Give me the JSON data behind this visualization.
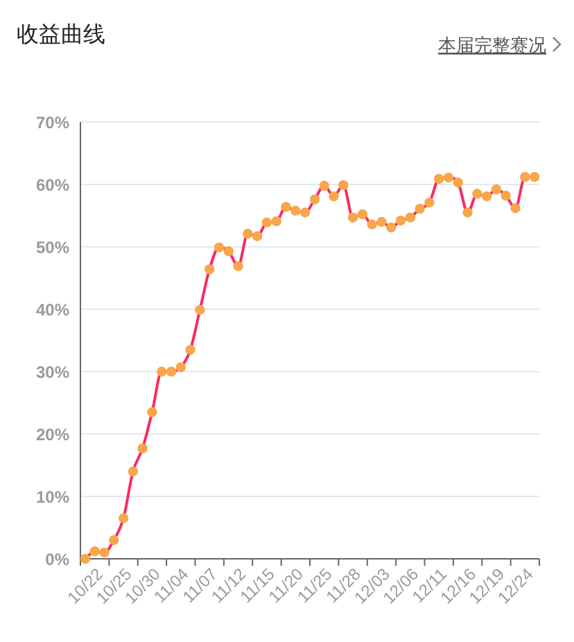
{
  "chart_data": {
    "type": "line",
    "title": "收益曲线",
    "annotations": [
      "本届完整赛况"
    ],
    "categories": [
      "10/22",
      null,
      null,
      "10/25",
      null,
      null,
      "10/30",
      null,
      null,
      "11/04",
      null,
      null,
      "11/07",
      null,
      null,
      "11/12",
      null,
      null,
      "11/15",
      null,
      null,
      "11/20",
      null,
      null,
      "11/25",
      null,
      null,
      "11/28",
      null,
      null,
      "12/03",
      null,
      null,
      "12/06",
      null,
      null,
      "12/11",
      null,
      null,
      "12/16",
      null,
      null,
      "12/19",
      null,
      null,
      "12/24",
      null,
      null
    ],
    "series": [
      {
        "color": "#fa2a62",
        "values": [
          0,
          1.2,
          1.0,
          3.0,
          6.5,
          14.0,
          17.7,
          23.5,
          30.0,
          30.0,
          30.7,
          33.5,
          39.9,
          46.4,
          49.9,
          49.3,
          46.9,
          52.1,
          51.7,
          53.9,
          54.1,
          56.4,
          55.8,
          55.5,
          57.6,
          59.8,
          58.1,
          59.9,
          54.7,
          55.2,
          53.6,
          54.0,
          53.1,
          54.2,
          54.7,
          56.1,
          57.1,
          60.9,
          61.1,
          60.3,
          55.5,
          58.5,
          58.1,
          59.2,
          58.2,
          56.2,
          61.2,
          61.2
        ]
      }
    ],
    "ylim": [
      0,
      70
    ],
    "yticks": [
      {
        "value": 0,
        "label": "0%"
      },
      {
        "value": 10,
        "label": "10%"
      },
      {
        "value": 20,
        "label": "20%"
      },
      {
        "value": 30,
        "label": "30%"
      },
      {
        "value": 40,
        "label": "40%"
      },
      {
        "value": 50,
        "label": "50%"
      },
      {
        "value": 60,
        "label": "60%"
      },
      {
        "value": 70,
        "label": "70%"
      }
    ],
    "grid": "y",
    "marker": "circle",
    "line_style": "solid"
  }
}
